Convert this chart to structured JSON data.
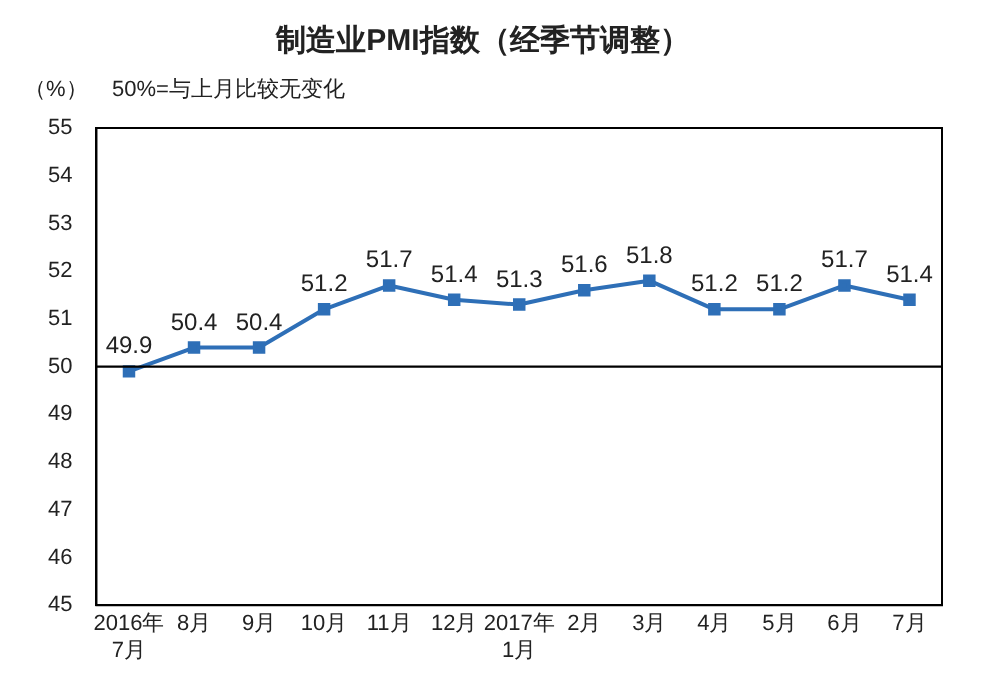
{
  "chart_data": {
    "type": "line",
    "title": "制造业PMI指数（经季节调整）",
    "ylabel": "（%）",
    "annotations": [
      "50%=与上月比较无变化"
    ],
    "categories": [
      "2016年\n7月",
      "8月",
      "9月",
      "10月",
      "11月",
      "12月",
      "2017年\n1月",
      "2月",
      "3月",
      "4月",
      "5月",
      "6月",
      "7月"
    ],
    "series": [
      {
        "color": "#2e6fb7",
        "values": [
          49.9,
          50.4,
          50.4,
          51.2,
          51.7,
          51.4,
          51.3,
          51.6,
          51.8,
          51.2,
          51.2,
          51.7,
          51.4
        ]
      }
    ],
    "ylim": [
      45,
      55
    ],
    "yticks": [
      45,
      46,
      47,
      48,
      49,
      50,
      51,
      52,
      53,
      54,
      55
    ],
    "ref_lines": [
      {
        "axis": "y",
        "value": 50,
        "color": "#000000"
      }
    ],
    "marker": "square",
    "line_style": "solid",
    "data_labels": true,
    "grid": false,
    "legend": false
  }
}
